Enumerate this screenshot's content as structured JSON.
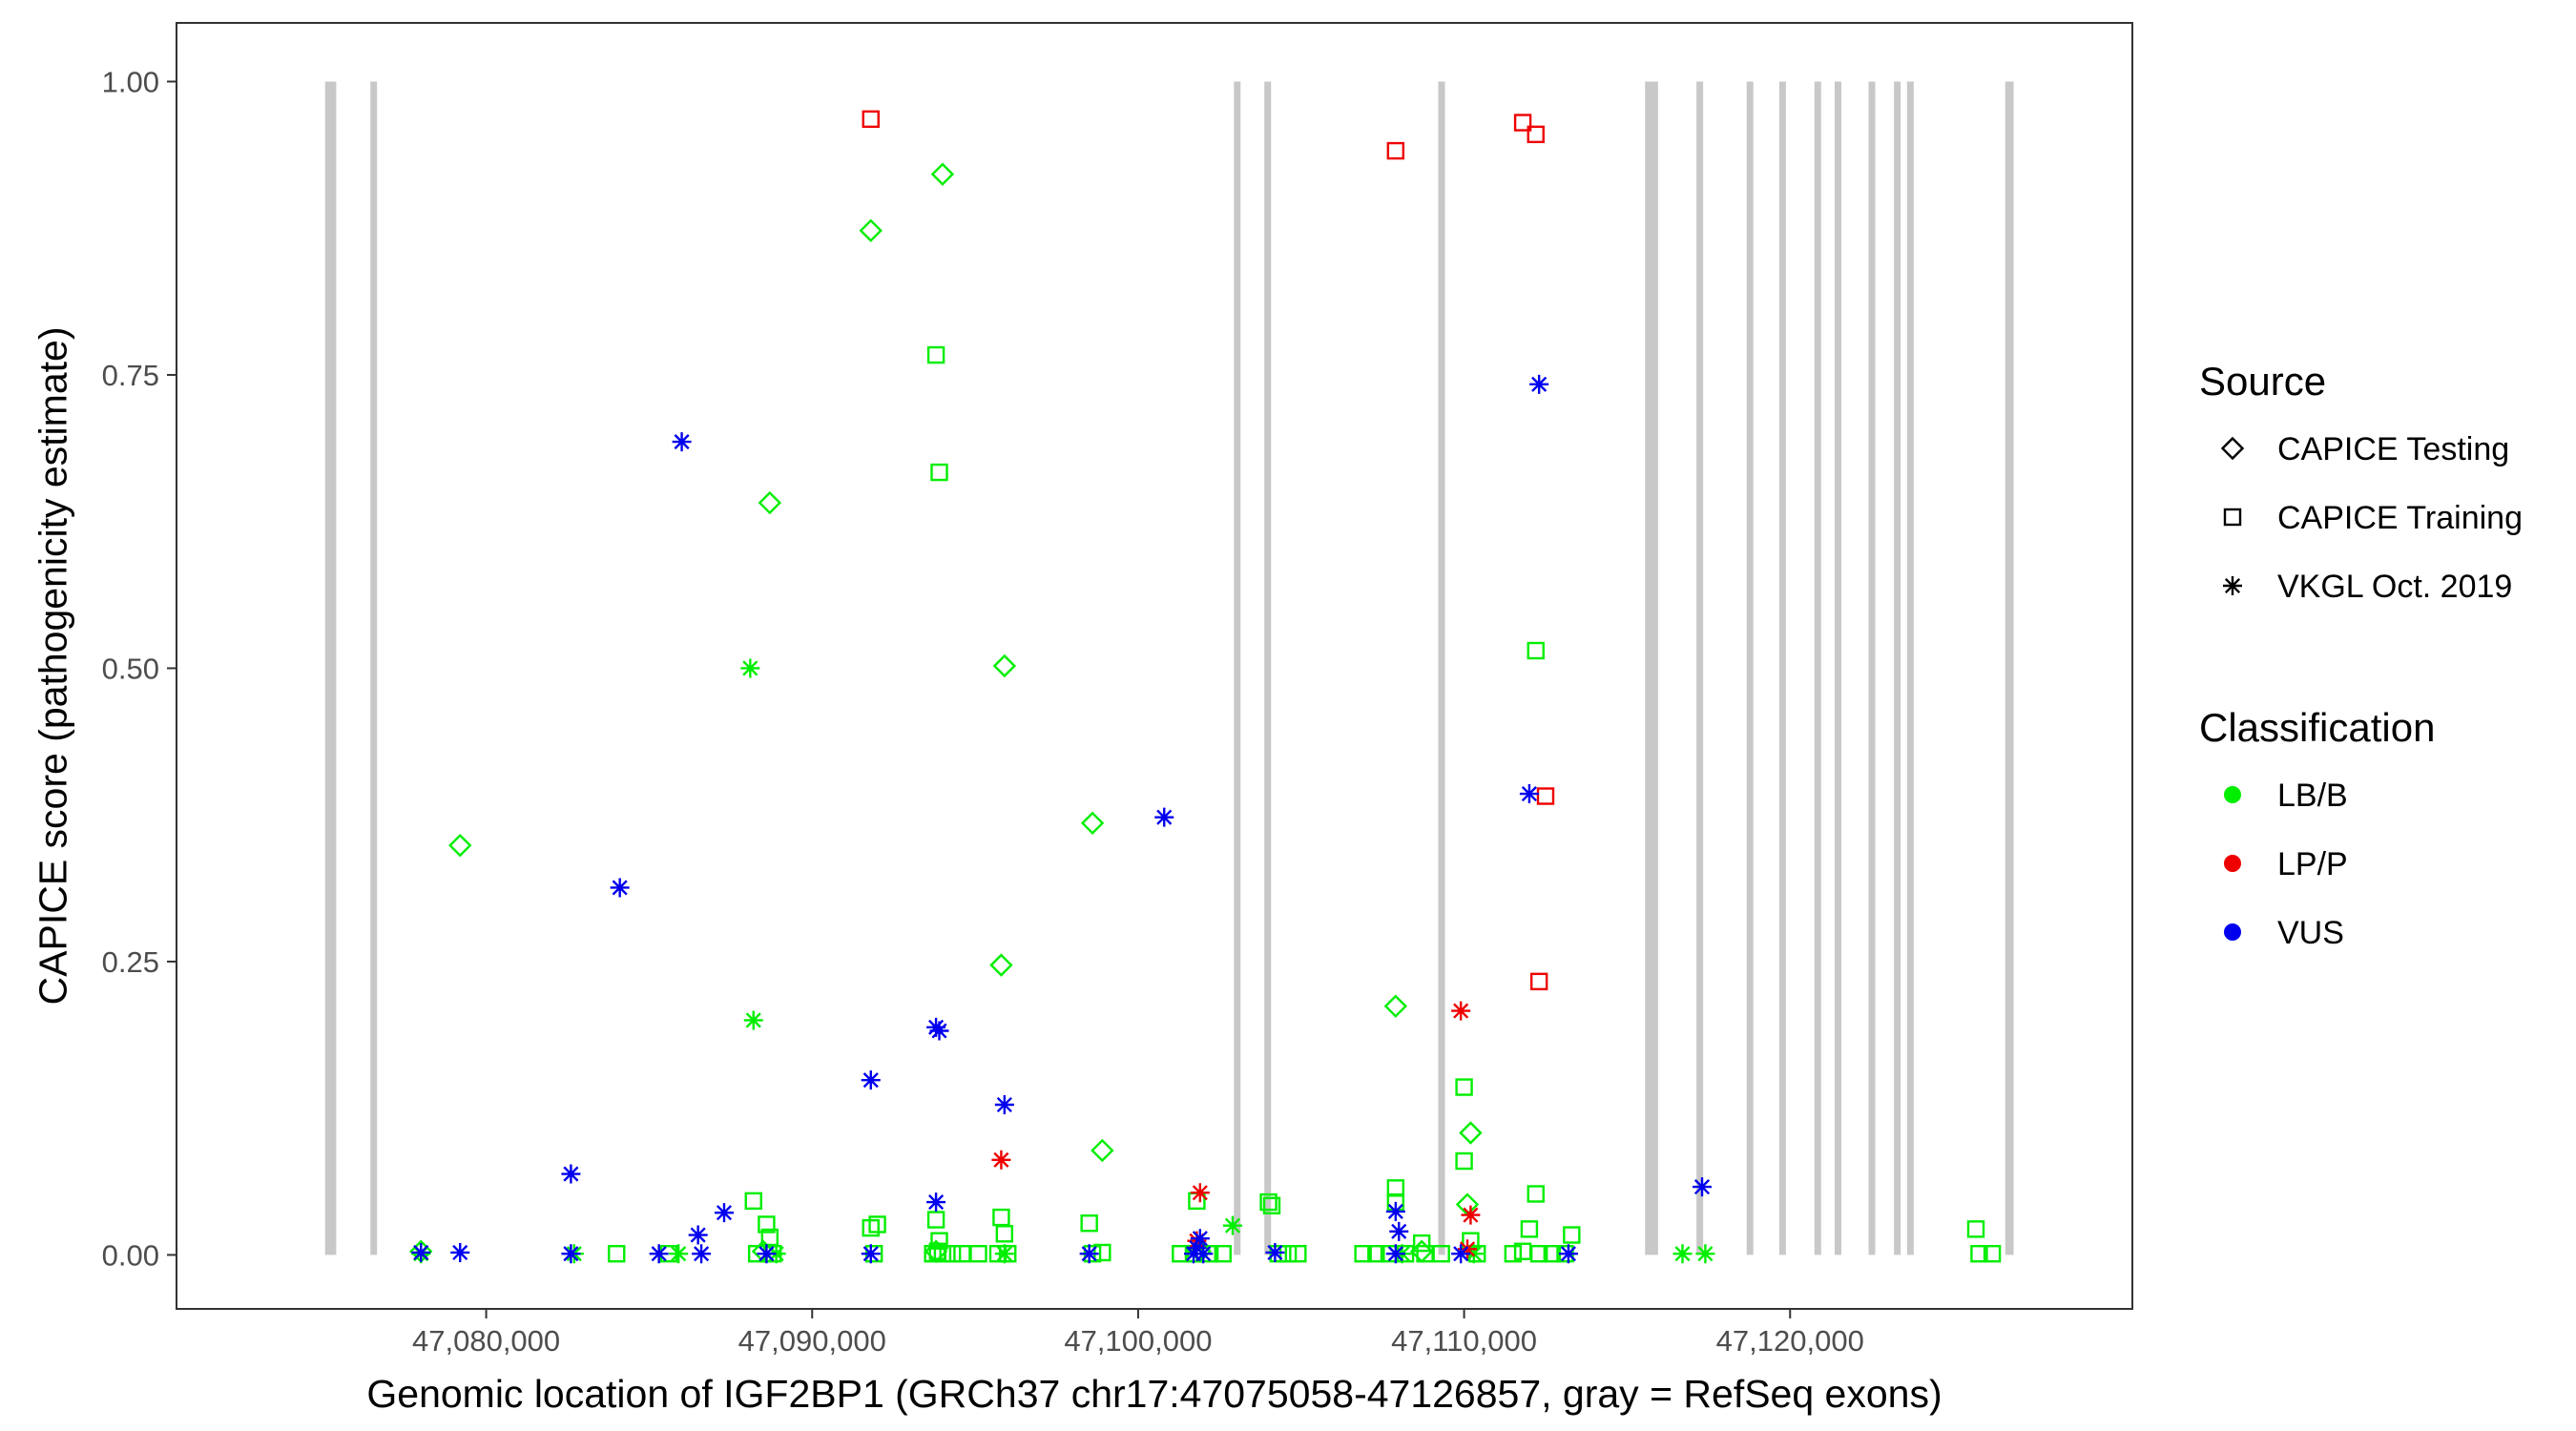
{
  "chart_data": {
    "type": "scatter",
    "title": "",
    "xlabel": "Genomic location of IGF2BP1 (GRCh37 chr17:47075058-47126857, gray = RefSeq exons)",
    "ylabel": "CAPICE score (pathogenicity estimate)",
    "xlim": [
      47070500,
      47130500
    ],
    "ylim": [
      -0.046,
      1.05
    ],
    "x_ticks": [
      47080000,
      47090000,
      47100000,
      47110000,
      47120000
    ],
    "x_tick_labels": [
      "47,080,000",
      "47,090,000",
      "47,100,000",
      "47,110,000",
      "47,120,000"
    ],
    "y_ticks": [
      0,
      0.25,
      0.5,
      0.75,
      1.0
    ],
    "y_tick_labels": [
      "0.00",
      "0.25",
      "0.50",
      "0.75",
      "1.00"
    ],
    "grid": false,
    "exon_color": "#c8c8c8",
    "exon_y_range": [
      0,
      1
    ],
    "exons": [
      {
        "start": 47075058,
        "end": 47075400
      },
      {
        "start": 47076480,
        "end": 47076620
      },
      {
        "start": 47102950,
        "end": 47103130
      },
      {
        "start": 47103900,
        "end": 47104050
      },
      {
        "start": 47109220,
        "end": 47109400
      },
      {
        "start": 47115550,
        "end": 47115950
      },
      {
        "start": 47117130,
        "end": 47117330
      },
      {
        "start": 47118680,
        "end": 47118860
      },
      {
        "start": 47119680,
        "end": 47119860
      },
      {
        "start": 47120760,
        "end": 47120940
      },
      {
        "start": 47121380,
        "end": 47121560
      },
      {
        "start": 47122420,
        "end": 47122600
      },
      {
        "start": 47123200,
        "end": 47123380
      },
      {
        "start": 47123600,
        "end": 47123780
      },
      {
        "start": 47126600,
        "end": 47126857
      }
    ],
    "legend": {
      "placement": "right",
      "source_title": "Source",
      "source_items": [
        {
          "label": "CAPICE Testing",
          "shape": "diamond"
        },
        {
          "label": "CAPICE Training",
          "shape": "square"
        },
        {
          "label": "VKGL Oct. 2019",
          "shape": "asterisk"
        }
      ],
      "class_title": "Classification",
      "class_items": [
        {
          "label": "LB/B",
          "color": "#00ee00"
        },
        {
          "label": "LP/P",
          "color": "#ee0000"
        },
        {
          "label": "VUS",
          "color": "#0000ee"
        }
      ]
    },
    "series": [
      {
        "source": "CAPICE Testing",
        "classification": "LB/B",
        "shape": "diamond",
        "color": "#00ee00",
        "x": [
          47079200,
          47088700,
          47091800,
          47094000,
          47095900,
          47095800,
          47098600,
          47098900,
          47107900,
          47110200,
          47110100,
          47078000,
          47088500,
          47093800,
          47101900,
          47108700
        ],
        "y": [
          0.349,
          0.641,
          0.873,
          0.921,
          0.502,
          0.247,
          0.368,
          0.089,
          0.212,
          0.104,
          0.043,
          0.003,
          0.003,
          0.003,
          0.003,
          0.003
        ]
      },
      {
        "source": "CAPICE Training",
        "classification": "LB/B",
        "shape": "square",
        "color": "#00ee00",
        "x": [
          47093800,
          47093900,
          47112200,
          47110000,
          47110000,
          47112200,
          47107900,
          47107900,
          47104000,
          47104100,
          47101800,
          47088200,
          47088600,
          47088700,
          47091800,
          47092000,
          47093800,
          47093900,
          47095800,
          47095900,
          47098500,
          47110200,
          47112000,
          47113300,
          47125700,
          47084000,
          47085600,
          47088300,
          47088800,
          47091900,
          47093700,
          47093850,
          47094000,
          47094300,
          47094600,
          47095100,
          47095700,
          47096000,
          47098600,
          47098900,
          47101300,
          47101700,
          47102200,
          47102600,
          47104300,
          47104600,
          47104900,
          47106900,
          47107300,
          47107700,
          47108200,
          47108800,
          47109300,
          47110400,
          47111500,
          47112300,
          47112700,
          47113100,
          47125800,
          47126200,
          47108700,
          47111800
        ],
        "y": [
          0.767,
          0.667,
          0.515,
          0.143,
          0.08,
          0.052,
          0.057,
          0.045,
          0.045,
          0.042,
          0.046,
          0.046,
          0.026,
          0.015,
          0.023,
          0.026,
          0.03,
          0.012,
          0.032,
          0.018,
          0.027,
          0.012,
          0.022,
          0.017,
          0.022,
          0.001,
          0.001,
          0.001,
          0.001,
          0.001,
          0.001,
          0.003,
          0.001,
          0.001,
          0.001,
          0.001,
          0.001,
          0.001,
          0.001,
          0.002,
          0.001,
          0.001,
          0.001,
          0.001,
          0.001,
          0.001,
          0.001,
          0.001,
          0.001,
          0.001,
          0.001,
          0.001,
          0.001,
          0.001,
          0.001,
          0.001,
          0.001,
          0.001,
          0.001,
          0.001,
          0.01,
          0.003
        ]
      },
      {
        "source": "CAPICE Training",
        "classification": "LP/P",
        "shape": "square",
        "color": "#ee0000",
        "x": [
          47091800,
          47107900,
          47111800,
          47112200,
          47112500,
          47112300
        ],
        "y": [
          0.968,
          0.941,
          0.965,
          0.955,
          0.391,
          0.233
        ]
      },
      {
        "source": "VKGL Oct. 2019",
        "classification": "LB/B",
        "shape": "asterisk",
        "color": "#00ee00",
        "x": [
          47088100,
          47088200,
          47102900,
          47078000,
          47082700,
          47085900,
          47088900,
          47095900,
          47108100,
          47110300,
          47116700,
          47117400
        ],
        "y": [
          0.5,
          0.2,
          0.025,
          0.001,
          0.001,
          0.001,
          0.001,
          0.001,
          0.001,
          0.001,
          0.001,
          0.001
        ]
      },
      {
        "source": "VKGL Oct. 2019",
        "classification": "LP/P",
        "shape": "asterisk",
        "color": "#ee0000",
        "x": [
          47109900,
          47095800,
          47101900,
          47110200,
          47101800,
          47110100
        ],
        "y": [
          0.208,
          0.081,
          0.053,
          0.034,
          0.012,
          0.005
        ]
      },
      {
        "source": "VKGL Oct. 2019",
        "classification": "VUS",
        "shape": "asterisk",
        "color": "#0000ee",
        "x": [
          47112300,
          47086000,
          47084100,
          47100800,
          47112000,
          47093800,
          47093900,
          47091800,
          47095900,
          47082600,
          47093800,
          47087300,
          47086500,
          47117300,
          47107900,
          47101900,
          47078000,
          47079200,
          47082600,
          47085300,
          47088600,
          47091800,
          47098500,
          47101700,
          47102000,
          47104200,
          47107900,
          47109900,
          47113200,
          47086600,
          47108000,
          47101800
        ],
        "y": [
          0.742,
          0.693,
          0.313,
          0.373,
          0.393,
          0.194,
          0.191,
          0.149,
          0.128,
          0.069,
          0.045,
          0.036,
          0.017,
          0.058,
          0.037,
          0.014,
          0.002,
          0.002,
          0.001,
          0.001,
          0.001,
          0.001,
          0.001,
          0.001,
          0.001,
          0.002,
          0.001,
          0.001,
          0.001,
          0.001,
          0.02,
          0.006
        ]
      }
    ]
  }
}
